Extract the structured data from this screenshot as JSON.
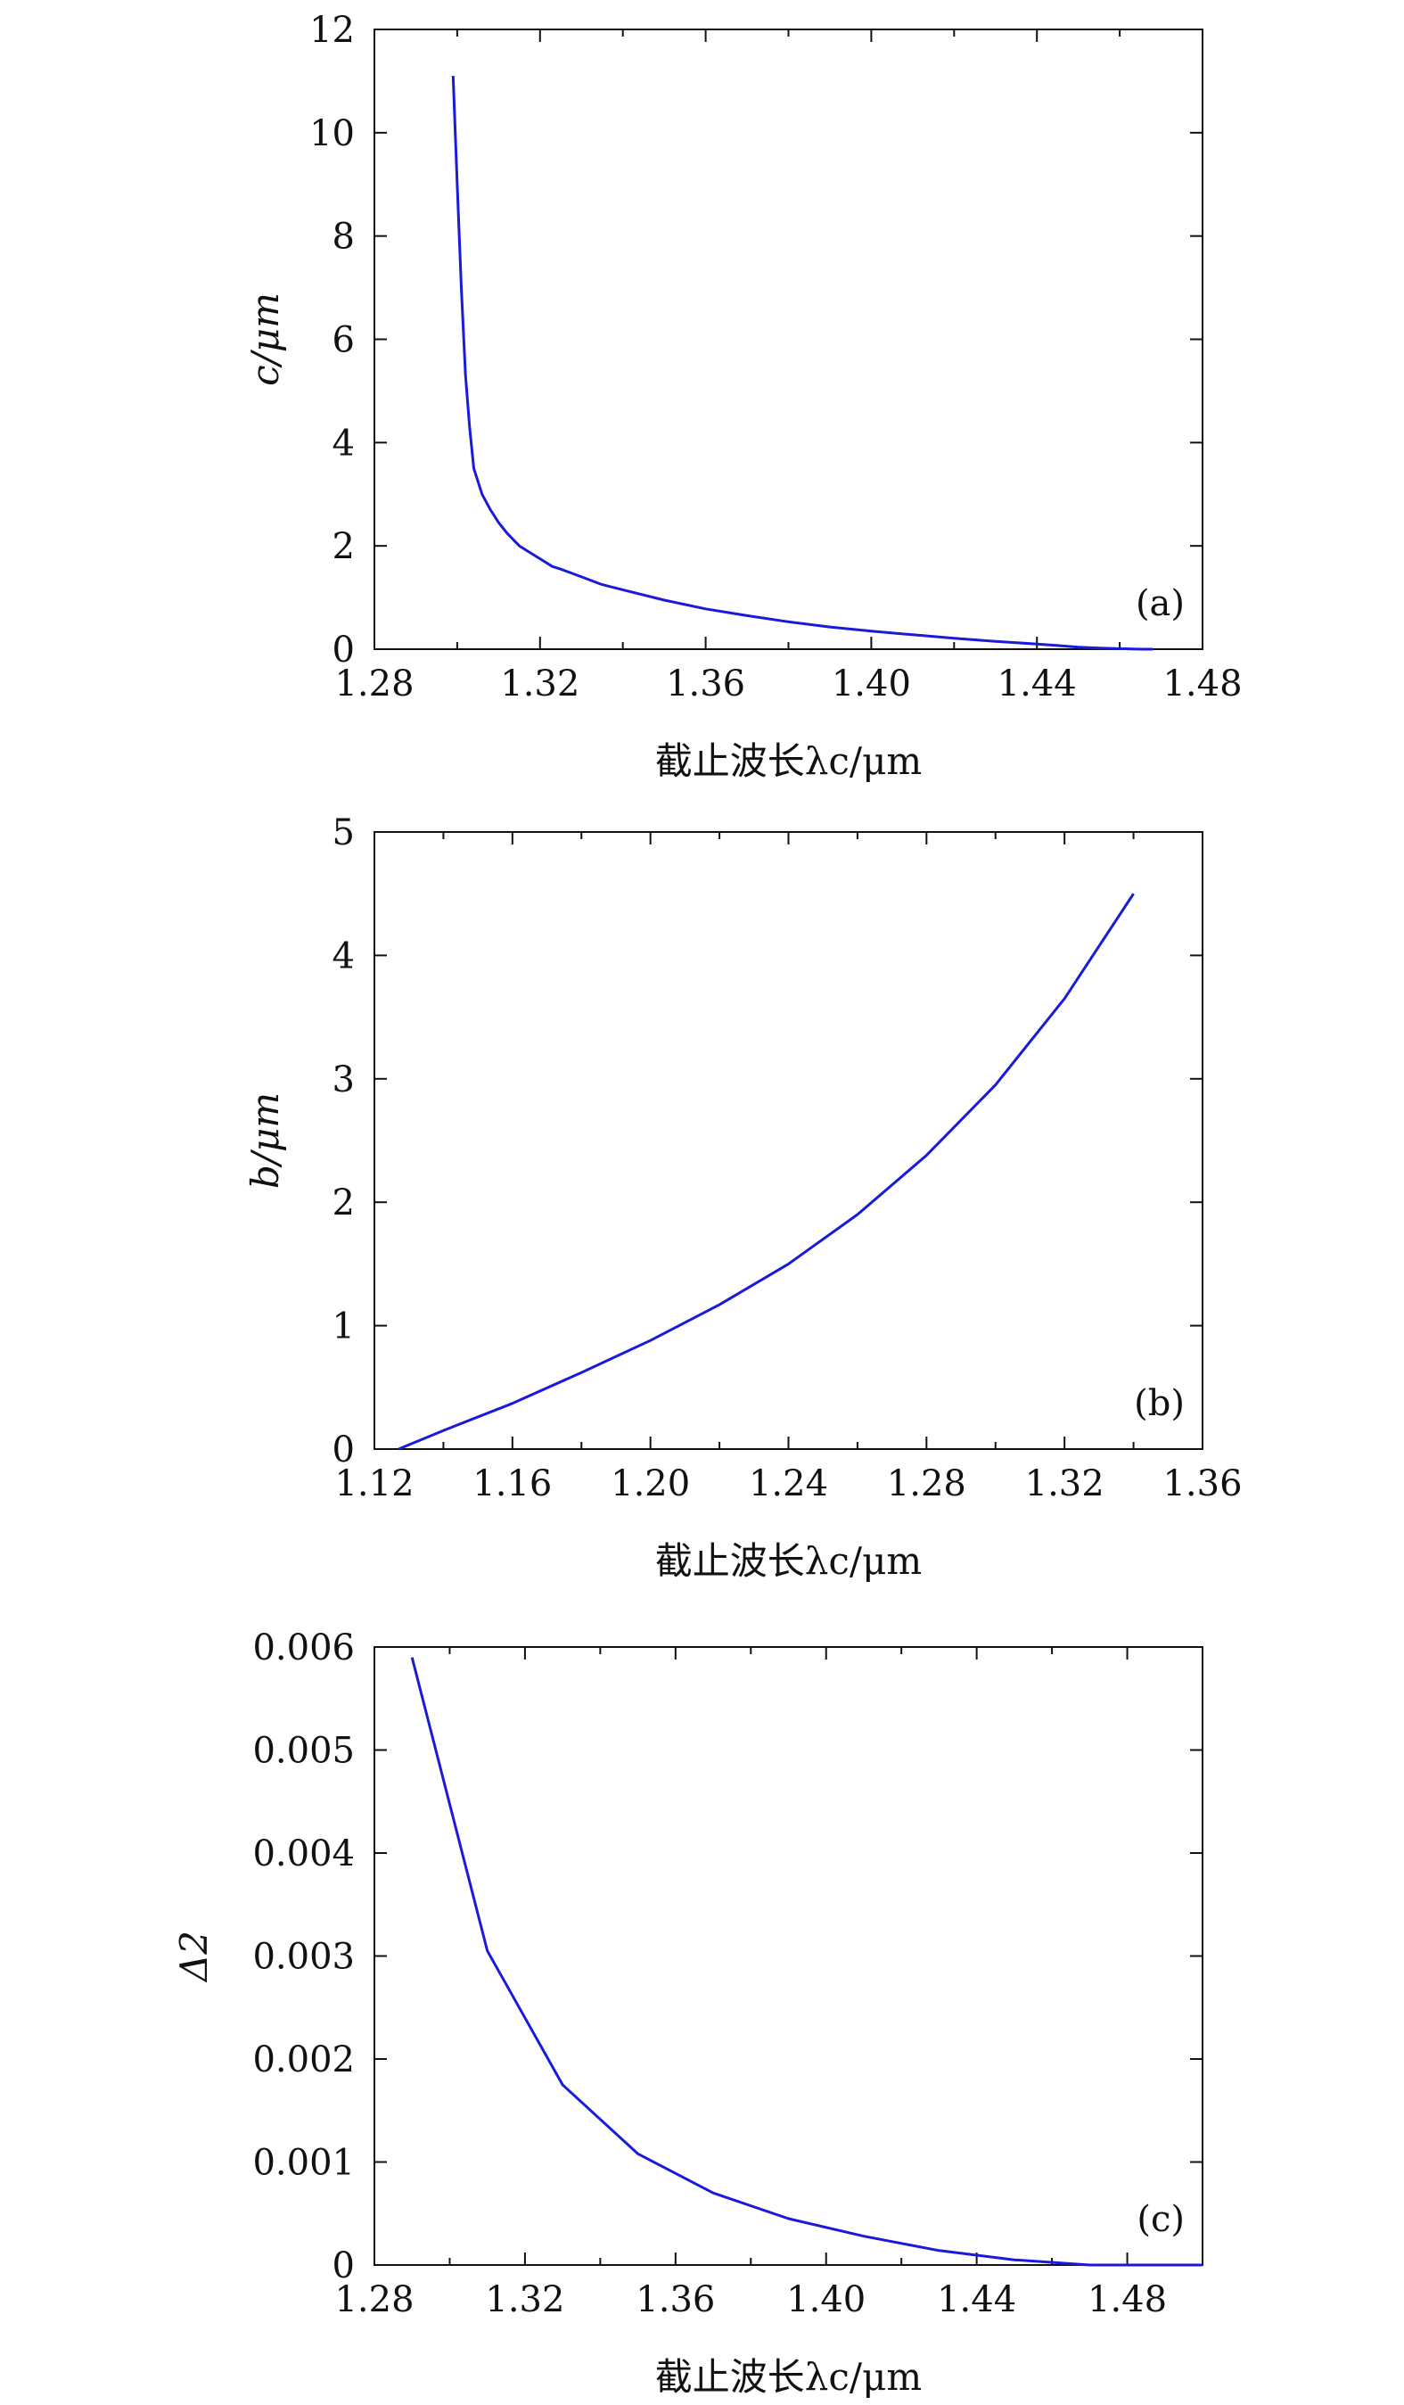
{
  "colors": {
    "line": "#1a1adb",
    "axis": "#111111",
    "background": "#ffffff"
  },
  "chart_data": [
    {
      "type": "line",
      "panel_label": "(a)",
      "xlabel": "截止波长λc/μm",
      "ylabel": "c/μm",
      "xlim": [
        1.28,
        1.48
      ],
      "ylim": [
        0,
        12
      ],
      "xticks": [
        "1.28",
        "1.32",
        "1.36",
        "1.40",
        "1.44",
        "1.48"
      ],
      "yticks": [
        "0",
        "2",
        "4",
        "6",
        "8",
        "10",
        "12"
      ],
      "grid": false,
      "series": [
        {
          "x": [
            1.299,
            1.3,
            1.301,
            1.302,
            1.303,
            1.304,
            1.306,
            1.308,
            1.31,
            1.312,
            1.315,
            1.318,
            1.32,
            1.323,
            1.325,
            1.33,
            1.335,
            1.34,
            1.35,
            1.36,
            1.37,
            1.38,
            1.39,
            1.4,
            1.41,
            1.42,
            1.43,
            1.44,
            1.445,
            1.45,
            1.455,
            1.46,
            1.465,
            1.468
          ],
          "y": [
            11.1,
            9.0,
            7.0,
            5.3,
            4.3,
            3.5,
            3.0,
            2.7,
            2.45,
            2.25,
            2.0,
            1.85,
            1.75,
            1.6,
            1.55,
            1.4,
            1.25,
            1.15,
            0.95,
            0.78,
            0.65,
            0.53,
            0.43,
            0.35,
            0.28,
            0.21,
            0.15,
            0.1,
            0.07,
            0.04,
            0.02,
            0.01,
            0.0,
            0.0
          ]
        }
      ]
    },
    {
      "type": "line",
      "panel_label": "(b)",
      "xlabel": "截止波长λc/μm",
      "ylabel": "b/μm",
      "xlim": [
        1.12,
        1.36
      ],
      "ylim": [
        0,
        5
      ],
      "xticks": [
        "1.12",
        "1.16",
        "1.20",
        "1.24",
        "1.28",
        "1.32",
        "1.36"
      ],
      "yticks": [
        "0",
        "1",
        "2",
        "3",
        "4",
        "5"
      ],
      "grid": false,
      "series": [
        {
          "x": [
            1.127,
            1.14,
            1.16,
            1.18,
            1.2,
            1.22,
            1.24,
            1.26,
            1.28,
            1.3,
            1.32,
            1.34
          ],
          "y": [
            0.0,
            0.15,
            0.37,
            0.62,
            0.88,
            1.17,
            1.5,
            1.9,
            2.38,
            2.95,
            3.65,
            4.5
          ]
        }
      ]
    },
    {
      "type": "line",
      "panel_label": "(c)",
      "xlabel": "截止波长λc/μm",
      "ylabel": "Δ2",
      "xlim": [
        1.28,
        1.5
      ],
      "ylim": [
        0,
        0.006
      ],
      "xticks": [
        "1.28",
        "1.32",
        "1.36",
        "1.40",
        "1.44",
        "1.48"
      ],
      "yticks": [
        "0",
        "0.001",
        "0.002",
        "0.003",
        "0.004",
        "0.005",
        "0.006"
      ],
      "grid": false,
      "series": [
        {
          "x": [
            1.29,
            1.31,
            1.33,
            1.35,
            1.37,
            1.39,
            1.41,
            1.43,
            1.45,
            1.47,
            1.5
          ],
          "y": [
            0.0059,
            0.00305,
            0.00175,
            0.00108,
            0.0007,
            0.00045,
            0.00028,
            0.00014,
            5e-05,
            0.0,
            0.0
          ]
        }
      ]
    }
  ]
}
